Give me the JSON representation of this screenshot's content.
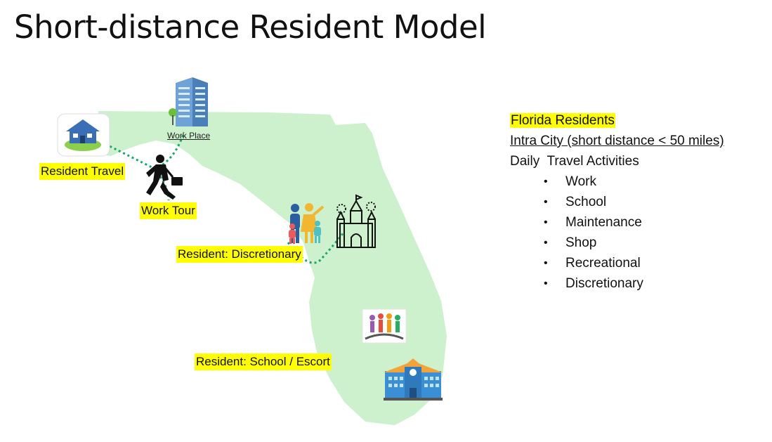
{
  "title": "Short-distance Resident Model",
  "map": {
    "work_place_label": "Work Place",
    "labels": {
      "resident_travel": "Resident Travel",
      "work_tour": "Work Tour",
      "discretionary": "Resident: Discretionary",
      "school_escort": "Resident: School / Escort"
    }
  },
  "info": {
    "heading": "Florida Residents",
    "subheading": "Intra City (short distance < 50 miles)",
    "activities_title": "Daily  Travel Activities",
    "activities": [
      "Work",
      "School",
      "Maintenance",
      "Shop",
      "Recreational",
      "Discretionary"
    ]
  },
  "colors": {
    "land": "#cdf0cd",
    "highlight": "#ffff00",
    "path": "#1aa86a"
  }
}
